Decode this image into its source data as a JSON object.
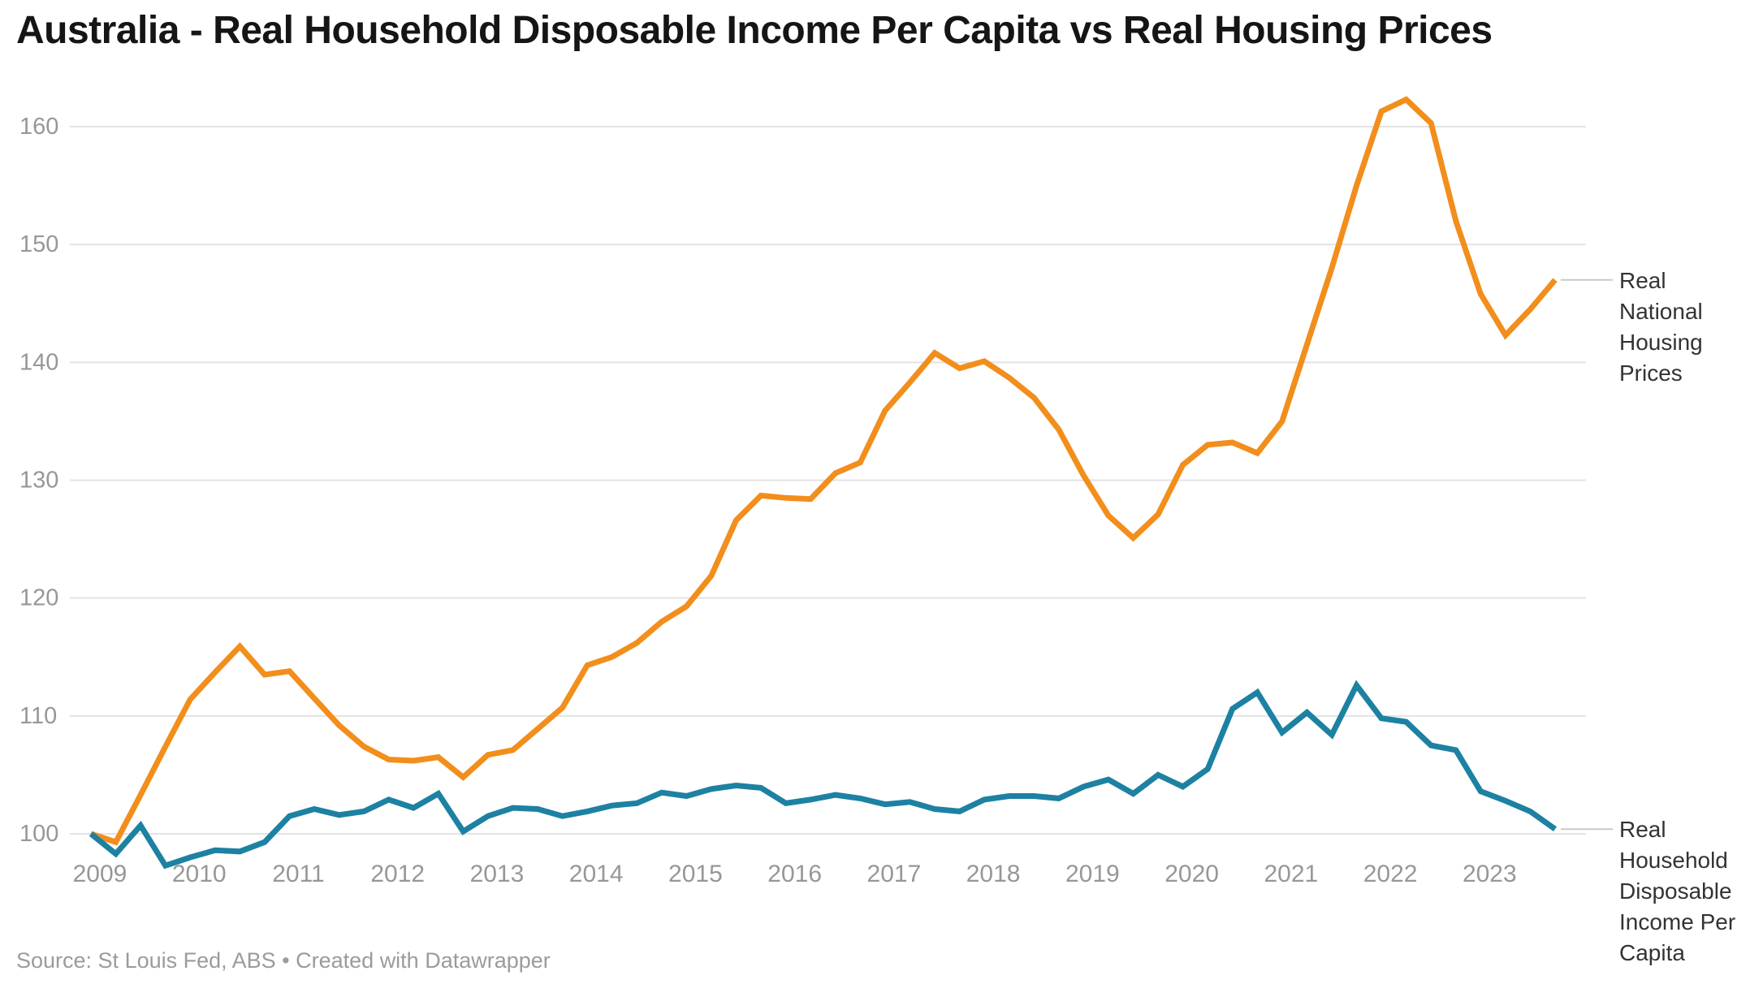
{
  "title": "Australia - Real Household Disposable Income Per Capita vs Real Housing Prices",
  "source": "Source: St Louis Fed, ABS • Created with Datawrapper",
  "colors": {
    "housing_line": "#f28e1c",
    "income_line": "#1d81a2",
    "gridline": "#e3e3e3",
    "axis_text": "#979797",
    "legend_text": "#333333",
    "leader_line": "#c9c9c9",
    "title_text": "#151515",
    "background": "#ffffff"
  },
  "legend": {
    "housing_label": "Real National Housing Prices",
    "income_label": "Real Household Disposable Income Per Capita"
  },
  "chart_data": {
    "type": "line",
    "x": [
      "2009 Q1",
      "2009 Q2",
      "2009 Q3",
      "2009 Q4",
      "2010 Q1",
      "2010 Q2",
      "2010 Q3",
      "2010 Q4",
      "2011 Q1",
      "2011 Q2",
      "2011 Q3",
      "2011 Q4",
      "2012 Q1",
      "2012 Q2",
      "2012 Q3",
      "2012 Q4",
      "2013 Q1",
      "2013 Q2",
      "2013 Q3",
      "2013 Q4",
      "2014 Q1",
      "2014 Q2",
      "2014 Q3",
      "2014 Q4",
      "2015 Q1",
      "2015 Q2",
      "2015 Q3",
      "2015 Q4",
      "2016 Q1",
      "2016 Q2",
      "2016 Q3",
      "2016 Q4",
      "2017 Q1",
      "2017 Q2",
      "2017 Q3",
      "2017 Q4",
      "2018 Q1",
      "2018 Q2",
      "2018 Q3",
      "2018 Q4",
      "2019 Q1",
      "2019 Q2",
      "2019 Q3",
      "2019 Q4",
      "2020 Q1",
      "2020 Q2",
      "2020 Q3",
      "2020 Q4",
      "2021 Q1",
      "2021 Q2",
      "2021 Q3",
      "2021 Q4",
      "2022 Q1",
      "2022 Q2",
      "2022 Q3",
      "2022 Q4",
      "2023 Q1",
      "2023 Q2",
      "2023 Q3",
      "2023 Q4"
    ],
    "series": [
      {
        "name": "Real National Housing Prices",
        "values": [
          100.0,
          99.3,
          103.3,
          107.4,
          111.4,
          113.7,
          115.9,
          113.5,
          113.8,
          111.5,
          109.2,
          107.4,
          106.3,
          106.2,
          106.5,
          104.8,
          106.7,
          107.1,
          108.9,
          110.7,
          114.3,
          115.0,
          116.2,
          118.0,
          119.3,
          121.9,
          126.6,
          128.7,
          128.5,
          128.4,
          130.6,
          131.5,
          135.9,
          138.3,
          140.8,
          139.5,
          140.1,
          138.7,
          137.0,
          134.3,
          130.4,
          127.0,
          125.1,
          127.1,
          131.3,
          133.0,
          133.2,
          132.3,
          135.0,
          141.5,
          148.0,
          155.0,
          161.3,
          162.3,
          160.3,
          152.0,
          145.8,
          142.3,
          144.5,
          147.0
        ]
      },
      {
        "name": "Real Household Disposable Income Per Capita",
        "values": [
          100.0,
          98.3,
          100.7,
          97.3,
          98.0,
          98.6,
          98.5,
          99.3,
          101.5,
          102.1,
          101.6,
          101.9,
          102.9,
          102.2,
          103.4,
          100.2,
          101.5,
          102.2,
          102.1,
          101.5,
          101.9,
          102.4,
          102.6,
          103.5,
          103.2,
          103.8,
          104.1,
          103.9,
          102.6,
          102.9,
          103.3,
          103.0,
          102.5,
          102.7,
          102.1,
          101.9,
          102.9,
          103.2,
          103.2,
          103.0,
          104.0,
          104.6,
          103.4,
          105.0,
          104.0,
          105.5,
          110.6,
          112.0,
          108.6,
          110.3,
          108.4,
          112.6,
          109.8,
          109.5,
          107.5,
          107.1,
          103.6,
          102.8,
          101.9,
          100.4
        ]
      }
    ],
    "title": "Australia - Real Household Disposable Income Per Capita vs Real Housing Prices",
    "xlabel": "",
    "ylabel": "",
    "ylim": [
      97,
      164
    ],
    "yticks": [
      100,
      110,
      120,
      130,
      140,
      150,
      160
    ],
    "year_ticks": [
      "2009",
      "2010",
      "2011",
      "2012",
      "2013",
      "2014",
      "2015",
      "2016",
      "2017",
      "2018",
      "2019",
      "2020",
      "2021",
      "2022",
      "2023"
    ],
    "grid": "horizontal",
    "legend_position": "right-of-line-ends"
  }
}
